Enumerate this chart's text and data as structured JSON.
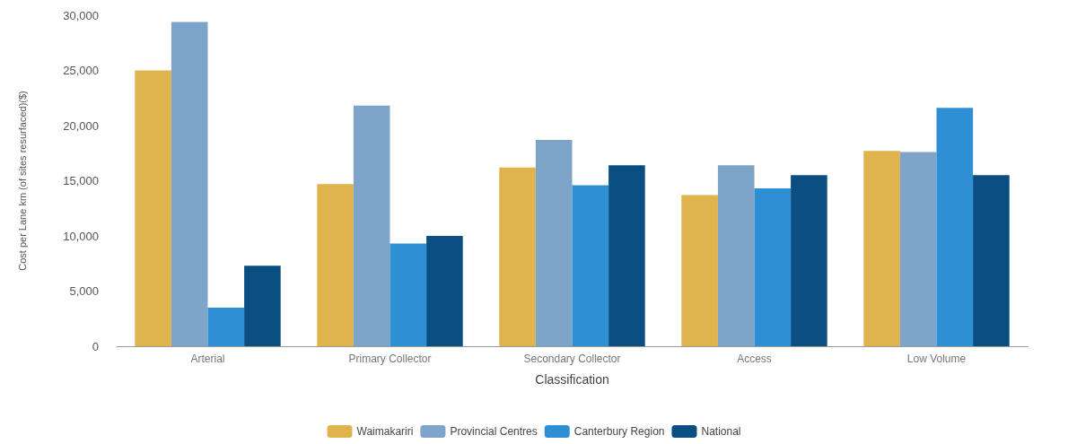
{
  "chart_data": {
    "type": "bar",
    "xlabel": "Classification",
    "ylabel": "Cost per Lane km (of sites resurfaced)($)",
    "categories": [
      "Arterial",
      "Primary Collector",
      "Secondary Collector",
      "Access",
      "Low Volume"
    ],
    "series": [
      {
        "name": "Waimakariri",
        "color": "#e0b44d",
        "values": [
          25000,
          14700,
          16200,
          13700,
          17700
        ]
      },
      {
        "name": "Provincial Centres",
        "color": "#7ea4c9",
        "values": [
          29400,
          21800,
          18700,
          16400,
          17600
        ]
      },
      {
        "name": "Canterbury Region",
        "color": "#2f8fd4",
        "values": [
          3500,
          9300,
          14600,
          14300,
          21600
        ]
      },
      {
        "name": "National",
        "color": "#0b4f82",
        "values": [
          7300,
          10000,
          16400,
          15500,
          15500
        ]
      }
    ],
    "ylim": [
      0,
      30000
    ],
    "yticks": [
      {
        "value": 0,
        "label": "0"
      },
      {
        "value": 5000,
        "label": "5,000"
      },
      {
        "value": 10000,
        "label": "10,000"
      },
      {
        "value": 15000,
        "label": "15,000"
      },
      {
        "value": 20000,
        "label": "20,000"
      },
      {
        "value": 25000,
        "label": "25,000"
      },
      {
        "value": 30000,
        "label": "30,000"
      }
    ],
    "grid": false,
    "legend": "bottom"
  }
}
